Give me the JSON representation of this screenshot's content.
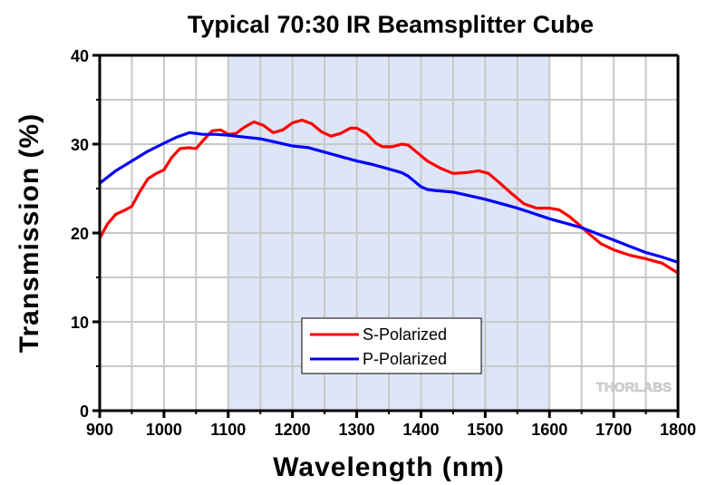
{
  "chart_data": {
    "type": "line",
    "title": "Typical 70:30 IR Beamsplitter Cube",
    "xlabel": "Wavelength (nm)",
    "ylabel": "Transmission (%)",
    "xlim": [
      900,
      1800
    ],
    "ylim": [
      0,
      40
    ],
    "xticks": [
      900,
      1000,
      1100,
      1200,
      1300,
      1400,
      1500,
      1600,
      1700,
      1800
    ],
    "xtick_labels": [
      "900",
      "1000",
      "1100",
      "1200",
      "1300",
      "1400",
      "1500",
      "1600",
      "1700",
      "1800"
    ],
    "yticks": [
      0,
      10,
      20,
      30,
      40
    ],
    "ytick_labels": [
      "0",
      "10",
      "20",
      "30",
      "40"
    ],
    "x_minor_step": 50,
    "y_minor_step": 5,
    "grid": true,
    "highlight_band": {
      "from": 1100,
      "to": 1600,
      "color": "#dde5f6"
    },
    "legend": {
      "position": "center-bottom",
      "entries": [
        "S-Polarized",
        "P-Polarized"
      ]
    },
    "watermark": "THORLABS",
    "series": [
      {
        "name": "S-Polarized",
        "color": "#ff0000",
        "x": [
          900,
          912,
          925,
          940,
          950,
          962,
          975,
          988,
          1000,
          1012,
          1025,
          1040,
          1050,
          1062,
          1075,
          1088,
          1100,
          1112,
          1125,
          1140,
          1155,
          1170,
          1185,
          1200,
          1215,
          1230,
          1245,
          1260,
          1275,
          1290,
          1300,
          1315,
          1330,
          1340,
          1355,
          1370,
          1380,
          1395,
          1410,
          1430,
          1450,
          1470,
          1490,
          1505,
          1520,
          1540,
          1560,
          1580,
          1600,
          1615,
          1630,
          1645,
          1660,
          1680,
          1700,
          1725,
          1750,
          1775,
          1800
        ],
        "y": [
          19.4,
          21.0,
          22.1,
          22.6,
          23.0,
          24.6,
          26.1,
          26.7,
          27.1,
          28.5,
          29.5,
          29.6,
          29.5,
          30.5,
          31.5,
          31.6,
          31.1,
          31.2,
          31.9,
          32.5,
          32.1,
          31.3,
          31.6,
          32.4,
          32.7,
          32.3,
          31.4,
          30.9,
          31.2,
          31.8,
          31.8,
          31.2,
          30.1,
          29.7,
          29.7,
          30.0,
          29.9,
          29.0,
          28.1,
          27.3,
          26.7,
          26.8,
          27.0,
          26.7,
          25.8,
          24.5,
          23.3,
          22.8,
          22.8,
          22.6,
          21.9,
          21.0,
          20.0,
          18.8,
          18.1,
          17.5,
          17.1,
          16.6,
          15.5
        ]
      },
      {
        "name": "P-Polarized",
        "color": "#0000ff",
        "x": [
          900,
          925,
          950,
          975,
          1000,
          1020,
          1040,
          1050,
          1060,
          1080,
          1100,
          1125,
          1150,
          1175,
          1200,
          1225,
          1250,
          1275,
          1300,
          1325,
          1350,
          1370,
          1380,
          1390,
          1400,
          1410,
          1420,
          1450,
          1475,
          1500,
          1525,
          1550,
          1575,
          1600,
          1625,
          1650,
          1675,
          1700,
          1725,
          1750,
          1775,
          1800
        ],
        "y": [
          25.6,
          27.0,
          28.1,
          29.2,
          30.1,
          30.8,
          31.3,
          31.2,
          31.1,
          31.1,
          31.0,
          30.8,
          30.6,
          30.2,
          29.8,
          29.6,
          29.1,
          28.6,
          28.1,
          27.7,
          27.2,
          26.8,
          26.4,
          25.8,
          25.2,
          24.9,
          24.8,
          24.6,
          24.2,
          23.8,
          23.3,
          22.8,
          22.2,
          21.6,
          21.1,
          20.6,
          19.9,
          19.2,
          18.5,
          17.8,
          17.3,
          16.7
        ]
      }
    ]
  }
}
